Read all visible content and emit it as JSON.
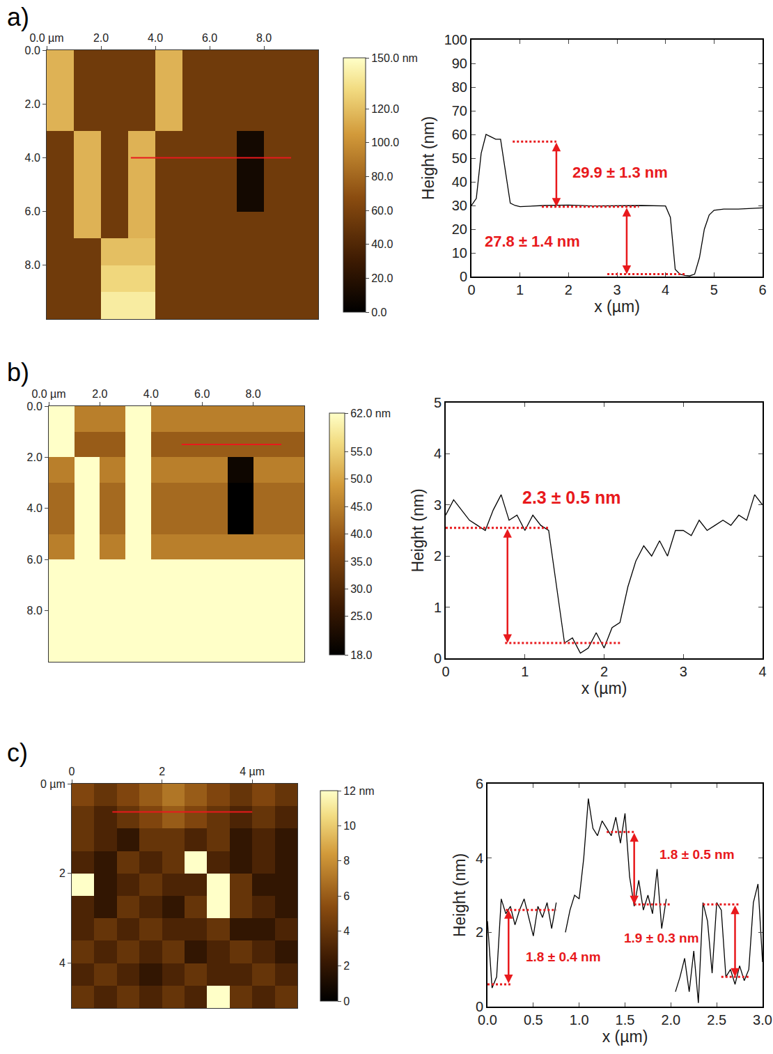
{
  "chart_data": [
    {
      "type": "heatmap",
      "panel": "a)",
      "x": [
        0.5,
        1.5,
        2.5,
        3.5,
        4.5,
        5.5,
        6.5,
        7.5,
        8.5,
        9.5
      ],
      "y": [
        0.5,
        1.5,
        2.5,
        3.5,
        4.5,
        5.5,
        6.5,
        7.5,
        8.5,
        9.5
      ],
      "z": [
        [
          115,
          55,
          55,
          55,
          115,
          55,
          55,
          55,
          55,
          55
        ],
        [
          115,
          55,
          55,
          55,
          115,
          55,
          55,
          55,
          55,
          55
        ],
        [
          115,
          55,
          55,
          55,
          115,
          55,
          55,
          55,
          55,
          55
        ],
        [
          55,
          115,
          55,
          115,
          55,
          55,
          55,
          10,
          55,
          55
        ],
        [
          55,
          115,
          55,
          115,
          55,
          55,
          55,
          10,
          55,
          55
        ],
        [
          55,
          115,
          55,
          115,
          55,
          55,
          55,
          10,
          55,
          55
        ],
        [
          55,
          115,
          55,
          115,
          55,
          55,
          55,
          55,
          55,
          55
        ],
        [
          55,
          55,
          120,
          120,
          55,
          55,
          55,
          55,
          55,
          55
        ],
        [
          55,
          55,
          130,
          130,
          55,
          55,
          55,
          55,
          55,
          55
        ],
        [
          55,
          55,
          140,
          140,
          55,
          55,
          55,
          55,
          55,
          55
        ]
      ],
      "xlim": [
        0,
        10
      ],
      "ylim": [
        10,
        0
      ],
      "xticks": [
        {
          "value": 0,
          "label": "0.0 µm"
        },
        {
          "value": 2,
          "label": "2.0"
        },
        {
          "value": 4,
          "label": "4.0"
        },
        {
          "value": 6,
          "label": "6.0"
        },
        {
          "value": 8,
          "label": "8.0"
        }
      ],
      "yticks": [
        {
          "value": 0,
          "label": "0.0"
        },
        {
          "value": 2,
          "label": "2.0"
        },
        {
          "value": 4,
          "label": "4.0"
        },
        {
          "value": 6,
          "label": "6.0"
        },
        {
          "value": 8,
          "label": "8.0"
        }
      ],
      "colorbar": {
        "range": [
          0,
          150
        ],
        "ticks": [
          {
            "value": 150,
            "label": "150.0 nm"
          },
          {
            "value": 120,
            "label": "120.0"
          },
          {
            "value": 100,
            "label": "100.0"
          },
          {
            "value": 80,
            "label": "80.0"
          },
          {
            "value": 60,
            "label": "60.0"
          },
          {
            "value": 40,
            "label": "40.0"
          },
          {
            "value": 20,
            "label": "20.0"
          },
          {
            "value": 0,
            "label": "0.0"
          }
        ]
      },
      "profile_line": {
        "x": [
          3.1,
          9.0
        ],
        "y": [
          4.0,
          4.0
        ],
        "color": "#e8191c"
      }
    },
    {
      "type": "line",
      "x_label": "x (µm)",
      "y_label": "Height (nm)",
      "color": "#000000",
      "x": [
        0,
        0.1,
        0.2,
        0.3,
        0.4,
        0.5,
        0.6,
        0.7,
        0.8,
        0.9,
        1.0,
        1.5,
        2.0,
        2.5,
        3.0,
        3.5,
        4.0,
        4.1,
        4.2,
        4.3,
        4.4,
        4.5,
        4.6,
        4.7,
        4.8,
        4.9,
        5.0,
        5.2,
        5.5,
        6.0
      ],
      "values": [
        30,
        33,
        52,
        60,
        59,
        58,
        58,
        45,
        31,
        30,
        29.5,
        30,
        30.2,
        29.8,
        30,
        30,
        29.8,
        25,
        3,
        1,
        0.5,
        0.3,
        1,
        8,
        20,
        26,
        28,
        28.5,
        28.5,
        29
      ],
      "xlim": [
        0,
        6
      ],
      "ylim": [
        0,
        100
      ],
      "xticks": [
        0,
        1,
        2,
        3,
        4,
        5,
        6
      ],
      "yticks": [
        0,
        10,
        20,
        30,
        40,
        50,
        60,
        70,
        80,
        90,
        100
      ],
      "markings": {
        "color": "#e8191c",
        "labels": [
          {
            "text": "29.9 ± 1.3 nm",
            "x": 2.05,
            "y": 44
          },
          {
            "text": "27.8 ± 1.4 nm",
            "x": 0.25,
            "y": 15
          }
        ],
        "levels": [
          {
            "x": [
              0.85,
              1.75
            ],
            "y": 57
          },
          {
            "x": [
              1.45,
              3.45
            ],
            "y": 29.5
          },
          {
            "x": [
              2.8,
              4.4
            ],
            "y": 1
          }
        ],
        "arrows": [
          {
            "x": 1.75,
            "y": [
              57,
              29.5
            ]
          },
          {
            "x": 3.2,
            "y": [
              29.5,
              1
            ]
          }
        ]
      }
    },
    {
      "type": "heatmap",
      "panel": "b)",
      "x": [
        0.5,
        1.5,
        2.5,
        3.5,
        4.5,
        5.5,
        6.5,
        7.5,
        8.5,
        9.5
      ],
      "y": [
        0.5,
        1.5,
        2.5,
        3.5,
        4.5,
        5.5,
        6.5,
        7.5,
        8.5,
        9.5
      ],
      "z": [
        [
          62,
          45,
          45,
          62,
          45,
          45,
          45,
          45,
          45,
          45
        ],
        [
          62,
          40,
          40,
          62,
          40,
          40,
          40,
          40,
          40,
          40
        ],
        [
          45,
          62,
          45,
          62,
          45,
          45,
          45,
          20,
          45,
          45
        ],
        [
          42,
          62,
          42,
          62,
          42,
          42,
          42,
          18,
          42,
          42
        ],
        [
          42,
          62,
          42,
          62,
          42,
          42,
          42,
          18,
          42,
          42
        ],
        [
          45,
          62,
          45,
          62,
          45,
          45,
          45,
          45,
          45,
          45
        ],
        [
          62,
          62,
          62,
          62,
          62,
          62,
          62,
          62,
          62,
          62
        ],
        [
          62,
          62,
          62,
          62,
          62,
          62,
          62,
          62,
          62,
          62
        ],
        [
          62,
          62,
          62,
          62,
          62,
          62,
          62,
          62,
          62,
          62
        ],
        [
          62,
          62,
          62,
          62,
          62,
          62,
          62,
          62,
          62,
          62
        ]
      ],
      "xlim": [
        0,
        10
      ],
      "ylim": [
        10,
        0
      ],
      "xticks": [
        {
          "value": 0,
          "label": "0.0 µm"
        },
        {
          "value": 2,
          "label": "2.0"
        },
        {
          "value": 4,
          "label": "4.0"
        },
        {
          "value": 6,
          "label": "6.0"
        },
        {
          "value": 8,
          "label": "8.0"
        }
      ],
      "yticks": [
        {
          "value": 0,
          "label": "0.0"
        },
        {
          "value": 2,
          "label": "2.0"
        },
        {
          "value": 4,
          "label": "4.0"
        },
        {
          "value": 6,
          "label": "6.0"
        },
        {
          "value": 8,
          "label": "8.0"
        }
      ],
      "colorbar": {
        "range": [
          18,
          62
        ],
        "ticks": [
          {
            "value": 62,
            "label": "62.0 nm"
          },
          {
            "value": 55,
            "label": "55.0"
          },
          {
            "value": 50,
            "label": "50.0"
          },
          {
            "value": 45,
            "label": "45.0"
          },
          {
            "value": 40,
            "label": "40.0"
          },
          {
            "value": 35,
            "label": "35.0"
          },
          {
            "value": 30,
            "label": "30.0"
          },
          {
            "value": 25,
            "label": "25.0"
          },
          {
            "value": 18,
            "label": "18.0"
          }
        ]
      },
      "profile_line": {
        "x": [
          5.2,
          9.1
        ],
        "y": [
          1.5,
          1.5
        ],
        "color": "#e8191c"
      }
    },
    {
      "type": "line",
      "x_label": "x (µm)",
      "y_label": "Height (nm)",
      "color": "#000000",
      "x": [
        0,
        0.1,
        0.2,
        0.3,
        0.4,
        0.5,
        0.6,
        0.7,
        0.8,
        0.9,
        1.0,
        1.1,
        1.2,
        1.3,
        1.4,
        1.5,
        1.6,
        1.7,
        1.8,
        1.9,
        2.0,
        2.1,
        2.2,
        2.3,
        2.4,
        2.5,
        2.6,
        2.7,
        2.8,
        2.9,
        3.0,
        3.1,
        3.2,
        3.3,
        3.4,
        3.5,
        3.6,
        3.7,
        3.8,
        3.9,
        4.0
      ],
      "values": [
        2.8,
        3.1,
        2.9,
        2.7,
        2.6,
        2.5,
        2.9,
        3.2,
        2.7,
        2.8,
        2.5,
        2.8,
        2.6,
        2.5,
        1.4,
        0.3,
        0.4,
        0.1,
        0.2,
        0.5,
        0.2,
        0.6,
        0.7,
        1.4,
        1.9,
        2.2,
        2.0,
        2.3,
        2.0,
        2.5,
        2.5,
        2.4,
        2.7,
        2.5,
        2.6,
        2.7,
        2.6,
        2.8,
        2.7,
        3.2,
        3.0
      ],
      "xlim": [
        0,
        4
      ],
      "ylim": [
        0,
        5
      ],
      "xticks": [
        0,
        1,
        2,
        3,
        4
      ],
      "yticks": [
        0,
        1,
        2,
        3,
        4,
        5
      ],
      "markings": {
        "color": "#e8191c",
        "labels": [
          {
            "text": "2.3 ± 0.5 nm",
            "x": 0.95,
            "y": 3.15
          }
        ],
        "levels": [
          {
            "x": [
              0,
              1.3
            ],
            "y": 2.55
          },
          {
            "x": [
              0.75,
              2.2
            ],
            "y": 0.3
          }
        ],
        "arrows": [
          {
            "x": 0.78,
            "y": [
              2.55,
              0.3
            ]
          }
        ]
      }
    },
    {
      "type": "heatmap",
      "panel": "c)",
      "x": [
        0.25,
        0.75,
        1.25,
        1.75,
        2.25,
        2.75,
        3.25,
        3.75,
        4.25,
        4.75
      ],
      "y": [
        0.25,
        0.75,
        1.25,
        1.75,
        2.25,
        2.75,
        3.25,
        3.75,
        4.25,
        4.75
      ],
      "z": [
        [
          5,
          4,
          5,
          6,
          7,
          6,
          5,
          4,
          5,
          4
        ],
        [
          4,
          3,
          4,
          5,
          6,
          5,
          4,
          3,
          4,
          3
        ],
        [
          4,
          3,
          2,
          4,
          4,
          3,
          4,
          2,
          3,
          2
        ],
        [
          3,
          2,
          4,
          3,
          4,
          12,
          3,
          2,
          3,
          2
        ],
        [
          12,
          2,
          3,
          4,
          3,
          3,
          12,
          4,
          2,
          2
        ],
        [
          3,
          2,
          4,
          3,
          2,
          4,
          12,
          4,
          3,
          2
        ],
        [
          3,
          4,
          3,
          4,
          3,
          3,
          4,
          2,
          2,
          3
        ],
        [
          4,
          3,
          4,
          3,
          4,
          2,
          3,
          4,
          3,
          2
        ],
        [
          3,
          4,
          3,
          2,
          3,
          4,
          3,
          3,
          4,
          3
        ],
        [
          4,
          3,
          4,
          3,
          4,
          3,
          12,
          4,
          3,
          4
        ]
      ],
      "xlim": [
        0,
        5
      ],
      "ylim": [
        5,
        0
      ],
      "xticks": [
        0,
        2,
        {
          "value": 4,
          "label": "4 µm"
        }
      ],
      "yticks": [
        {
          "value": 0,
          "label": "0 µm"
        },
        2,
        4
      ],
      "colorbar": {
        "range": [
          0,
          12
        ],
        "ticks": [
          {
            "value": 12,
            "label": "12 nm"
          },
          10,
          8,
          6,
          4,
          2,
          0
        ]
      },
      "profile_line": {
        "x": [
          0.9,
          4.0
        ],
        "y": [
          0.63,
          0.63
        ],
        "color": "#e8191c"
      }
    },
    {
      "type": "line",
      "x_label": "x (µm)",
      "y_label": "Height (nm)",
      "color": "#000000",
      "x": [
        0,
        0.05,
        0.1,
        0.15,
        0.2,
        0.25,
        0.3,
        0.35,
        0.4,
        0.45,
        0.5,
        0.55,
        0.6,
        0.65,
        0.7,
        0.75,
        0.8,
        0.85,
        0.9,
        0.95,
        1.0,
        1.05,
        1.1,
        1.15,
        1.2,
        1.25,
        1.3,
        1.35,
        1.4,
        1.45,
        1.5,
        1.55,
        1.6,
        1.65,
        1.7,
        1.75,
        1.8,
        1.85,
        1.9,
        1.95,
        2.0,
        2.05,
        2.1,
        2.15,
        2.2,
        2.25,
        2.3,
        2.35,
        2.4,
        2.45,
        2.5,
        2.55,
        2.6,
        2.65,
        2.7,
        2.75,
        2.8,
        2.85,
        2.9,
        2.95,
        3.0
      ],
      "values": [
        2.3,
        0.5,
        0.8,
        2.9,
        2.5,
        2.7,
        2.2,
        2.6,
        2.9,
        2.4,
        1.9,
        2.7,
        2.4,
        2.8,
        2.1,
        2.8,
        null,
        2.0,
        2.6,
        3.0,
        2.9,
        4.0,
        5.6,
        4.8,
        4.6,
        5.0,
        4.8,
        4.6,
        5.1,
        4.4,
        5.2,
        3.5,
        2.7,
        3.4,
        2.6,
        3.0,
        2.5,
        3.7,
        2.1,
        2.9,
        null,
        0.4,
        0.8,
        1.3,
        0.4,
        1.5,
        0.1,
        2.8,
        2.3,
        0.9,
        2.8,
        2.6,
        0.8,
        1.0,
        0.6,
        1.1,
        0.7,
        1.0,
        2.8,
        3.3,
        1.2
      ],
      "xlim": [
        0,
        3
      ],
      "ylim": [
        0,
        6
      ],
      "xticks": [
        {
          "value": 0,
          "label": "0.0"
        },
        {
          "value": 0.5,
          "label": "0.5"
        },
        {
          "value": 1,
          "label": "1.0"
        },
        {
          "value": 1.5,
          "label": "1.5"
        },
        {
          "value": 2,
          "label": "2.0"
        },
        {
          "value": 2.5,
          "label": "2.5"
        },
        {
          "value": 3,
          "label": "3.0"
        }
      ],
      "yticks": [
        0,
        2,
        4,
        6
      ],
      "markings": {
        "color": "#e8191c",
        "labels": [
          {
            "text": "1.8 ± 0.4 nm",
            "x": 0.4,
            "y": 1.35
          },
          {
            "text": "1.8 ± 0.5 nm",
            "x": 1.86,
            "y": 4.1
          },
          {
            "text": "1.9 ± 0.3 nm",
            "x": 1.47,
            "y": 1.85
          }
        ],
        "levels": [
          {
            "x": [
              0.2,
              0.75
            ],
            "y": 2.6
          },
          {
            "x": [
              0,
              0.25
            ],
            "y": 0.6
          },
          {
            "x": [
              1.3,
              1.6
            ],
            "y": 4.7
          },
          {
            "x": [
              1.6,
              2.0
            ],
            "y": 2.75
          },
          {
            "x": [
              2.35,
              2.75
            ],
            "y": 2.75
          },
          {
            "x": [
              2.55,
              2.85
            ],
            "y": 0.8
          }
        ],
        "arrows": [
          {
            "x": 0.23,
            "y": [
              0.6,
              2.6
            ]
          },
          {
            "x": 1.6,
            "y": [
              4.7,
              2.75
            ]
          },
          {
            "x": 2.7,
            "y": [
              2.75,
              0.8
            ]
          }
        ]
      }
    }
  ]
}
